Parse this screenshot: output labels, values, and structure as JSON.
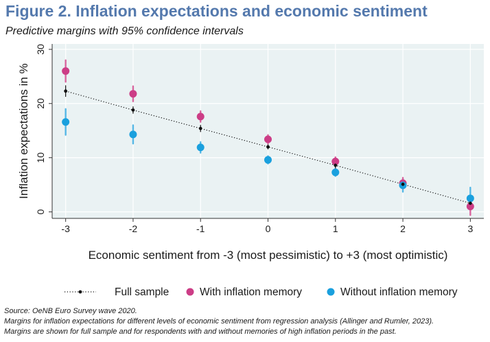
{
  "header": {
    "title": "Figure 2. Inflation expectations and economic sentiment",
    "subtitle": "Predictive margins with 95% confidence intervals"
  },
  "colors": {
    "full": "#111111",
    "with_memory": "#cc3d86",
    "without_memory": "#1aa0de",
    "plot_bg": "#eaf2f3",
    "ci_with": "#d9679f",
    "ci_without": "#56b8e6"
  },
  "chart_data": {
    "type": "scatter",
    "xlabel": "Economic sentiment from -3 (most pessimistic) to +3 (most optimistic)",
    "ylabel": "Inflation expectations in %",
    "xlim": [
      -3.2,
      3.2
    ],
    "ylim": [
      -1.2,
      31
    ],
    "x_ticks": [
      -3,
      -2,
      -1,
      0,
      1,
      2,
      3
    ],
    "x_tick_labels": [
      "-3",
      "-2",
      "-1",
      "0",
      "1",
      "2",
      "3"
    ],
    "y_ticks": [
      0,
      10,
      20,
      30
    ],
    "y_tick_labels": [
      "0",
      "10",
      "20",
      "30"
    ],
    "grid": true,
    "legend_position": "bottom",
    "series": [
      {
        "name": "Full sample",
        "key": "full",
        "marker": "small-dot-dotted-line",
        "x": [
          -3,
          -2,
          -1,
          0,
          1,
          2,
          3
        ],
        "values": [
          22.3,
          18.8,
          15.4,
          12.0,
          8.6,
          5.1,
          1.6
        ],
        "ci_low": [
          21.3,
          18.2,
          14.8,
          11.6,
          8.1,
          4.4,
          0.6
        ],
        "ci_high": [
          23.3,
          19.4,
          16.0,
          12.4,
          9.1,
          5.8,
          2.6
        ]
      },
      {
        "name": "With inflation memory",
        "key": "with_memory",
        "marker": "circle",
        "x": [
          -3,
          -2,
          -1,
          0,
          1,
          2,
          3
        ],
        "values": [
          26.0,
          21.8,
          17.6,
          13.4,
          9.3,
          5.3,
          1.0
        ],
        "ci_low": [
          24.0,
          20.4,
          16.6,
          12.6,
          8.5,
          4.3,
          -0.6
        ],
        "ci_high": [
          28.0,
          23.2,
          18.6,
          14.2,
          10.1,
          6.3,
          2.6
        ]
      },
      {
        "name": "Without inflation memory",
        "key": "without_memory",
        "marker": "circle",
        "x": [
          -3,
          -2,
          -1,
          0,
          1,
          2,
          3
        ],
        "values": [
          16.6,
          14.3,
          11.9,
          9.6,
          7.3,
          4.9,
          2.5
        ],
        "ci_low": [
          14.2,
          12.6,
          10.9,
          8.9,
          6.6,
          3.7,
          0.5
        ],
        "ci_high": [
          19.0,
          16.0,
          12.9,
          10.3,
          8.0,
          6.1,
          4.5
        ]
      }
    ]
  },
  "footnotes": {
    "source": "Source: OeNB Euro Survey wave 2020.",
    "note1": "Margins for inflation expectations for different levels of economic sentiment from regression analysis (Allinger and Rumler, 2023).",
    "note2": "Margins are shown for full sample and for respondents with and without memories of high inflation periods in the past."
  }
}
